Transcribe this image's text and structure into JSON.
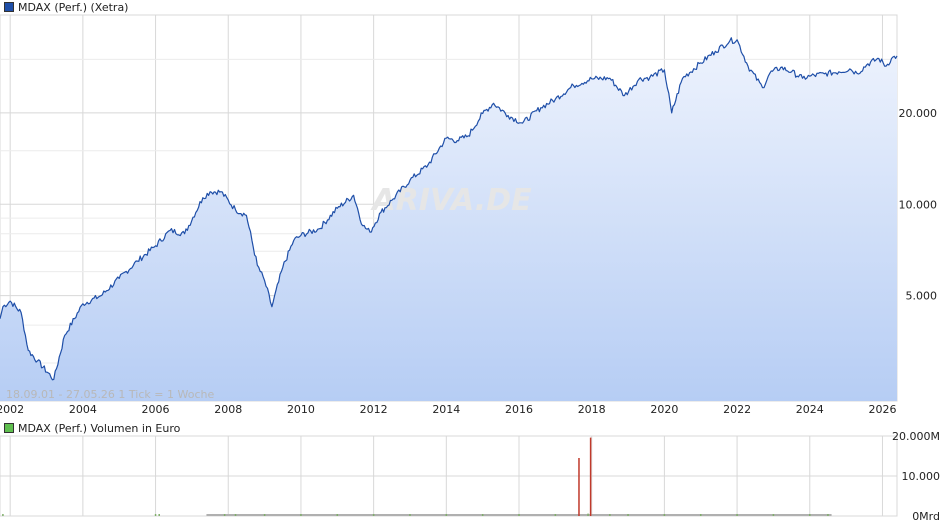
{
  "price_chart": {
    "legend_label": "MDAX (Perf.) (Xetra)",
    "legend_color": "#1f4fa8",
    "info_text": "18.09.01 - 27.05.26   1 Tick = 1 Woche",
    "watermark": "ARIVA.DE"
  },
  "volume_chart": {
    "legend_label": "MDAX (Perf.) Volumen in Euro",
    "legend_color": "#5fbf4f"
  },
  "colors": {
    "line": "#1f4fa8",
    "area_top": "#eef3fd",
    "area_bottom": "#b6cdf4",
    "grid": "#d8d8d8",
    "volume_bar": "#c0392b",
    "volume_small": "#a8a8a8"
  },
  "chart_data": [
    {
      "type": "area",
      "title": "MDAX (Perf.) (Xetra)",
      "scale": "log",
      "x_ticks": [
        "2002",
        "2004",
        "2006",
        "2008",
        "2010",
        "2012",
        "2014",
        "2016",
        "2018",
        "2020",
        "2022",
        "2024",
        "2026"
      ],
      "y_ticks": [
        5000,
        10000,
        20000
      ],
      "y_tick_labels": [
        "5.000",
        "10.000",
        "20.000"
      ],
      "ylim": [
        2250,
        42000
      ],
      "xlim": [
        2001.72,
        2026.4
      ],
      "grid": true,
      "series": [
        {
          "name": "MDAX (Perf.) (Xetra)",
          "x": [
            2001.72,
            2001.8,
            2002.0,
            2002.3,
            2002.5,
            2002.75,
            2003.2,
            2003.5,
            2004.0,
            2004.5,
            2005.0,
            2005.5,
            2006.0,
            2006.4,
            2006.8,
            2007.3,
            2007.5,
            2007.8,
            2008.2,
            2008.5,
            2008.8,
            2009.0,
            2009.2,
            2009.5,
            2009.8,
            2010.0,
            2010.5,
            2011.0,
            2011.45,
            2011.7,
            2011.9,
            2012.2,
            2012.5,
            2013.0,
            2013.5,
            2014.0,
            2014.3,
            2014.6,
            2015.0,
            2015.3,
            2015.7,
            2016.1,
            2016.6,
            2017.0,
            2017.5,
            2018.0,
            2018.5,
            2018.9,
            2019.3,
            2019.6,
            2020.0,
            2020.2,
            2020.5,
            2021.0,
            2021.4,
            2021.8,
            2022.0,
            2022.3,
            2022.7,
            2022.9,
            2023.2,
            2023.5,
            2023.8,
            2024.0,
            2024.4,
            2024.8,
            2025.1,
            2025.3,
            2025.6,
            2025.9,
            2026.1,
            2026.25,
            2026.4
          ],
          "values": [
            4200,
            4600,
            4800,
            4400,
            3300,
            3050,
            2650,
            3700,
            4700,
            5000,
            5700,
            6500,
            7300,
            8200,
            8000,
            10500,
            11000,
            11000,
            9600,
            9200,
            6300,
            5600,
            4600,
            6200,
            7600,
            7900,
            8300,
            9700,
            10700,
            8500,
            8100,
            9400,
            10300,
            12000,
            13500,
            16500,
            16200,
            16800,
            19900,
            21500,
            19600,
            18500,
            20800,
            22200,
            24600,
            25900,
            26000,
            22800,
            25800,
            26200,
            27700,
            20000,
            26000,
            29200,
            31900,
            34500,
            34800,
            28500,
            24200,
            27000,
            28200,
            27300,
            26000,
            26400,
            26900,
            27300,
            27900,
            27000,
            29000,
            30200,
            28500,
            30200,
            30800
          ]
        }
      ]
    },
    {
      "type": "bar",
      "title": "MDAX (Perf.) Volumen in Euro",
      "y_ticks": [
        0,
        10000,
        20000
      ],
      "y_tick_labels": [
        "0Mrd",
        "10.000",
        "20.000M"
      ],
      "ylim": [
        0,
        20000
      ],
      "grid": true,
      "series": [
        {
          "name": "MDAX (Perf.) Volumen in Euro",
          "x": [
            2001.8,
            2006.0,
            2006.1,
            2007.9,
            2008.2,
            2009.0,
            2010.0,
            2011.0,
            2012.0,
            2013.0,
            2014.0,
            2015.0,
            2016.0,
            2017.0,
            2017.65,
            2017.9,
            2017.97,
            2018.5,
            2019.0,
            2020.0,
            2021.0,
            2022.0,
            2023.0,
            2024.0,
            2024.5
          ],
          "values": [
            150,
            250,
            300,
            350,
            400,
            450,
            400,
            380,
            350,
            330,
            330,
            350,
            380,
            400,
            14500,
            600,
            19600,
            500,
            420,
            450,
            420,
            400,
            380,
            350,
            330
          ]
        }
      ]
    }
  ]
}
